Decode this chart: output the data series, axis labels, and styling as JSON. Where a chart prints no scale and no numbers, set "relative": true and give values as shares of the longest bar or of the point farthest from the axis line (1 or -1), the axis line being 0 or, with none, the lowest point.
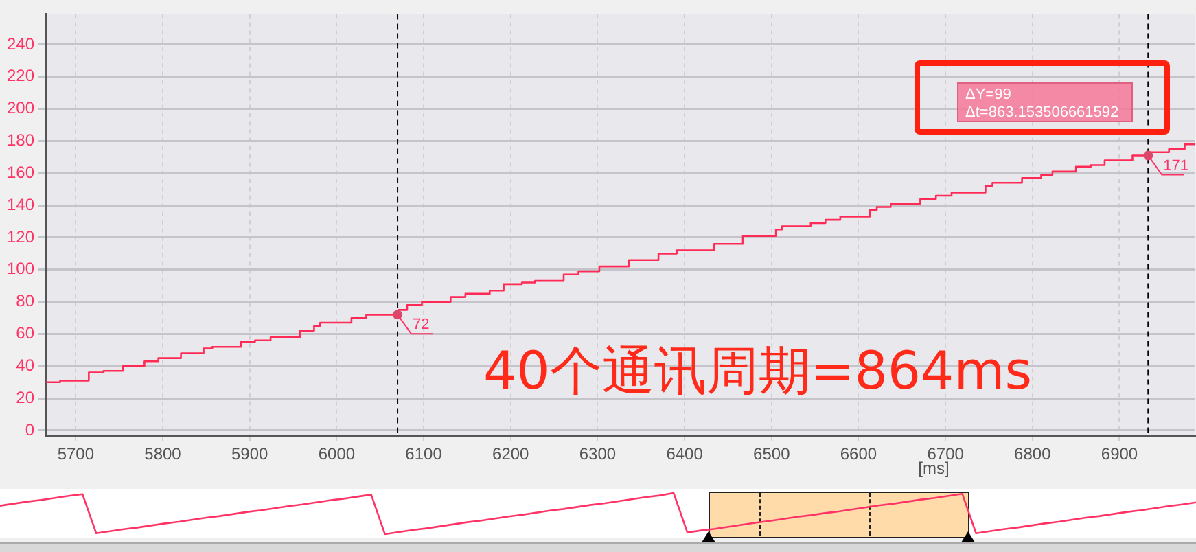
{
  "chart_data": [
    {
      "type": "step",
      "xlabel": "[ms]",
      "x": [
        5666,
        5682,
        5715,
        5732,
        5754,
        5779,
        5795,
        5821,
        5847,
        5857,
        5890,
        5906,
        5924,
        5958,
        5974,
        5981,
        6017,
        6034,
        6071,
        6081,
        6098,
        6131,
        6148,
        6176,
        6192,
        6213,
        6228,
        6261,
        6278,
        6302,
        6336,
        6370,
        6391,
        6434,
        6467,
        6505,
        6512,
        6545,
        6562,
        6579,
        6613,
        6621,
        6637,
        6671,
        6689,
        6707,
        6746,
        6754,
        6788,
        6810,
        6823,
        6850,
        6867,
        6883,
        6915,
        6935,
        6957,
        6975,
        6987
      ],
      "series": [
        {
          "color": "#ff2a55",
          "values": [
            30,
            31,
            36,
            37,
            40,
            43,
            45,
            48,
            51,
            52,
            55,
            56,
            58,
            62,
            65,
            67,
            70,
            72,
            75,
            78,
            80,
            83,
            85,
            87,
            91,
            92,
            93,
            97,
            99,
            102,
            106,
            110,
            112,
            116,
            121,
            125,
            127,
            129,
            131,
            133,
            137,
            139,
            141,
            144,
            146,
            148,
            152,
            154,
            157,
            159,
            161,
            164,
            165,
            168,
            171,
            173,
            175,
            178,
            178
          ]
        }
      ],
      "xlim": [
        5665,
        6987
      ],
      "xticks": [
        5700,
        5800,
        5900,
        6000,
        6100,
        6200,
        6300,
        6400,
        6500,
        6600,
        6700,
        6800,
        6900
      ],
      "ylim": [
        -3,
        259
      ],
      "yticks": [
        0,
        20,
        40,
        60,
        80,
        100,
        120,
        140,
        160,
        180,
        200,
        220,
        240
      ],
      "grid": true,
      "legend": false,
      "marker": "none",
      "ref_lines": [
        {
          "axis": "x",
          "value": 6070,
          "color": "#000000",
          "line_style": "dashed"
        },
        {
          "axis": "x",
          "value": 6933,
          "color": "#000000",
          "line_style": "dashed"
        }
      ],
      "annotations": [
        {
          "text": "72",
          "x": 6070,
          "y": 72
        },
        {
          "text": "171",
          "x": 6933,
          "y": 171
        },
        "ΔY=99\nΔt=863.153506661592",
        "40个通讯周期=864ms"
      ]
    },
    {
      "type": "line",
      "relative": true,
      "categories": [
        null,
        null,
        null,
        null,
        null,
        null,
        null,
        null,
        null,
        null,
        null,
        null,
        null,
        null,
        null,
        null,
        null,
        null,
        null,
        null,
        null,
        null,
        null,
        null,
        null,
        null,
        null,
        null,
        null,
        null,
        null,
        null,
        null,
        null,
        null,
        null,
        null,
        null,
        null,
        null,
        null,
        null,
        null,
        null,
        null,
        null,
        null,
        null,
        null,
        null,
        null,
        null,
        null,
        null,
        null,
        null,
        null,
        null,
        null,
        null,
        null,
        null,
        null,
        null,
        null,
        null,
        null,
        null,
        null,
        null,
        null,
        null,
        null,
        null,
        null,
        null,
        null,
        null,
        null,
        null,
        null,
        null,
        null,
        null,
        null,
        null,
        null,
        null
      ],
      "series": [
        {
          "color": "#ff3366",
          "values": [
            0.69,
            0.74,
            0.79,
            0.83,
            0.88,
            0.93,
            0.97,
            0.02,
            0.07,
            0.12,
            0.16,
            0.21,
            0.26,
            0.3,
            0.35,
            0.4,
            0.44,
            0.49,
            0.54,
            0.58,
            0.63,
            0.68,
            0.72,
            0.77,
            0.82,
            0.86,
            0.91,
            0.96,
            0,
            0.05,
            0.1,
            0.14,
            0.19,
            0.24,
            0.29,
            0.33,
            0.38,
            0.43,
            0.47,
            0.52,
            0.57,
            0.61,
            0.66,
            0.71,
            0.75,
            0.8,
            0.85,
            0.9,
            0.94,
            1,
            0.04,
            0.09,
            0.13,
            0.18,
            0.23,
            0.28,
            0.32,
            0.37,
            0.42,
            0.46,
            0.51,
            0.55,
            0.6,
            0.65,
            0.7,
            0.74,
            0.79,
            0.84,
            0.88,
            0.93,
            0.98,
            0.02,
            0.07,
            0.12,
            0.16,
            0.21,
            0.26,
            0.3,
            0.35,
            0.4,
            0.44,
            0.49,
            0.54,
            0.58,
            0.63,
            0.68,
            0.72,
            0.77
          ]
        }
      ],
      "legend": false,
      "marker": "none"
    }
  ]
}
